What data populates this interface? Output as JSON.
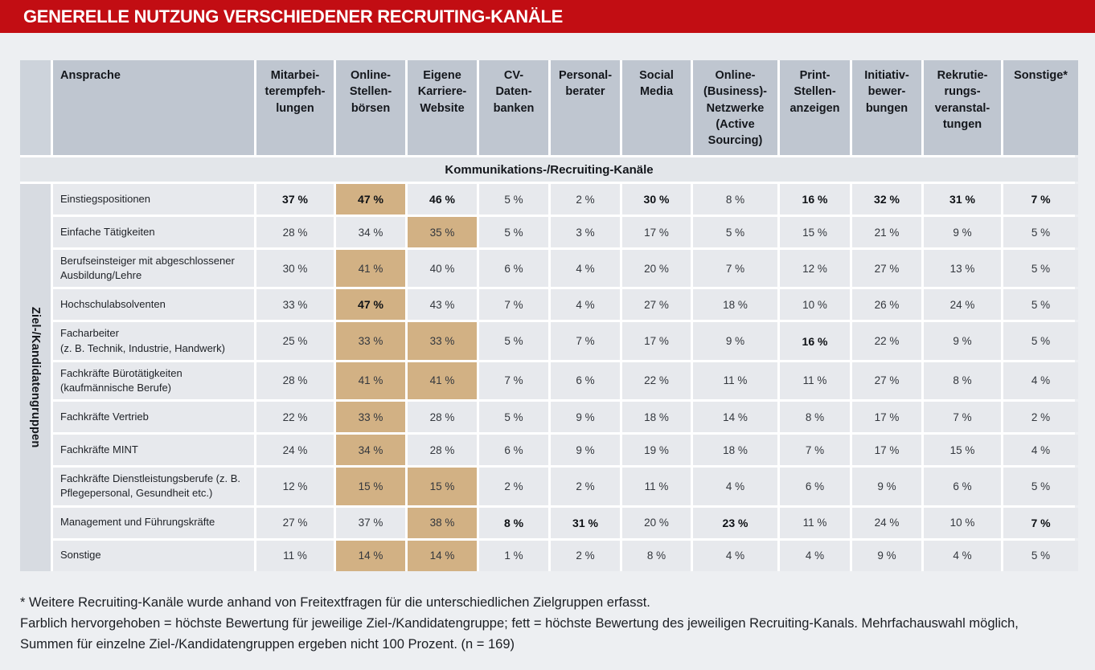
{
  "title": "GENERELLE NUTZUNG VERSCHIEDENER RECRUITING-KANÄLE",
  "colors": {
    "title_bar_red": "#C20D13",
    "column_header_bg": "#BFC6D0",
    "group_header_bg": "#E3E6EA",
    "cell_bg": "#E7E9ED",
    "side_label_bg": "#D7DBE1",
    "highlight_bg": "#D2B184",
    "page_bg": "#EDEFF2"
  },
  "table": {
    "corner_label": "Ansprache",
    "group_header": "Kommunikations-/Recruiting-Kanäle",
    "side_label": "Ziel-/Kandidatengruppen",
    "column_header_lines": [
      [
        "Mitarbei-",
        "terempfeh-",
        "lungen"
      ],
      [
        "Online-",
        "Stellen-",
        "börsen"
      ],
      [
        "Eigene",
        "Karriere-",
        "Website"
      ],
      [
        "CV-",
        "Daten-",
        "banken"
      ],
      [
        "Personal-",
        "berater"
      ],
      [
        "Social",
        "Media"
      ],
      [
        "Online-",
        "(Business)-",
        "Netzwerke",
        "(Active",
        "Sourcing)"
      ],
      [
        "Print-",
        "Stellen-",
        "anzeigen"
      ],
      [
        "Initiativ-",
        "bewer-",
        "bungen"
      ],
      [
        "Rekrutie-",
        "rungs-",
        "veranstal-",
        "tungen"
      ],
      [
        "Sonstige*"
      ]
    ]
  },
  "chart_data": {
    "type": "table",
    "title": "GENERELLE NUTZUNG VERSCHIEDENER RECRUITING-KANÄLE",
    "unit": "%",
    "n": 169,
    "columns": [
      "Mitarbeiterempfehlungen",
      "Online-Stellenbörsen",
      "Eigene Karriere-Website",
      "CV-Datenbanken",
      "Personalberater",
      "Social Media",
      "Online-(Business)-Netzwerke (Active Sourcing)",
      "Print-Stellenanzeigen",
      "Initiativbewerbungen",
      "Rekrutierungsveranstaltungen",
      "Sonstige*"
    ],
    "legend": {
      "highlight_meaning": "höchste Bewertung für jeweilige Ziel-/Kandidatengruppe",
      "bold_meaning": "höchste Bewertung des jeweiligen Recruiting-Kanals"
    },
    "rows": [
      {
        "label": "Einstiegspositionen",
        "values": [
          37,
          47,
          46,
          5,
          2,
          30,
          8,
          16,
          32,
          31,
          7
        ],
        "bold": [
          0,
          1,
          2,
          5,
          7,
          8,
          9,
          10
        ],
        "highlight": [
          1
        ]
      },
      {
        "label": "Einfache Tätigkeiten",
        "values": [
          28,
          34,
          35,
          5,
          3,
          17,
          5,
          15,
          21,
          9,
          5
        ],
        "bold": [],
        "highlight": [
          2
        ]
      },
      {
        "label": "Berufseinsteiger mit abgeschlossener\nAusbildung/Lehre",
        "values": [
          30,
          41,
          40,
          6,
          4,
          20,
          7,
          12,
          27,
          13,
          5
        ],
        "bold": [],
        "highlight": [
          1
        ]
      },
      {
        "label": "Hochschulabsolventen",
        "values": [
          33,
          47,
          43,
          7,
          4,
          27,
          18,
          10,
          26,
          24,
          5
        ],
        "bold": [
          1
        ],
        "highlight": [
          1
        ]
      },
      {
        "label": "Facharbeiter\n(z. B. Technik, Industrie, Handwerk)",
        "values": [
          25,
          33,
          33,
          5,
          7,
          17,
          9,
          16,
          22,
          9,
          5
        ],
        "bold": [
          7
        ],
        "highlight": [
          1,
          2
        ]
      },
      {
        "label": "Fachkräfte Bürotätigkeiten\n(kaufmännische Berufe)",
        "values": [
          28,
          41,
          41,
          7,
          6,
          22,
          11,
          11,
          27,
          8,
          4
        ],
        "bold": [],
        "highlight": [
          1,
          2
        ]
      },
      {
        "label": "Fachkräfte Vertrieb",
        "values": [
          22,
          33,
          28,
          5,
          9,
          18,
          14,
          8,
          17,
          7,
          2
        ],
        "bold": [],
        "highlight": [
          1
        ]
      },
      {
        "label": "Fachkräfte MINT",
        "values": [
          24,
          34,
          28,
          6,
          9,
          19,
          18,
          7,
          17,
          15,
          4
        ],
        "bold": [],
        "highlight": [
          1
        ]
      },
      {
        "label": "Fachkräfte Dienstleistungsberufe (z. B.\nPflegepersonal, Gesundheit etc.)",
        "values": [
          12,
          15,
          15,
          2,
          2,
          11,
          4,
          6,
          9,
          6,
          5
        ],
        "bold": [],
        "highlight": [
          1,
          2
        ]
      },
      {
        "label": "Management und Führungskräfte",
        "values": [
          27,
          37,
          38,
          8,
          31,
          20,
          23,
          11,
          24,
          10,
          7
        ],
        "bold": [
          3,
          4,
          6,
          10
        ],
        "highlight": [
          2
        ]
      },
      {
        "label": "Sonstige",
        "values": [
          11,
          14,
          14,
          1,
          2,
          8,
          4,
          4,
          9,
          4,
          5
        ],
        "bold": [],
        "highlight": [
          1,
          2
        ]
      }
    ]
  },
  "footnotes": [
    "* Weitere Recruiting-Kanäle wurde anhand von Freitextfragen für die unterschiedlichen Zielgruppen erfasst.",
    "Farblich hervorgehoben = höchste Bewertung für jeweilige Ziel-/Kandidatengruppe; fett = höchste Bewertung des jeweiligen Recruiting-Kanals. Mehrfachauswahl möglich,",
    "Summen für einzelne Ziel-/Kandidatengruppen ergeben nicht 100 Prozent. (n = 169)"
  ]
}
